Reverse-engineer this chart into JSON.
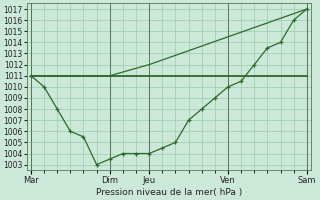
{
  "background_color": "#cce8d8",
  "grid_color": "#99ccaa",
  "line_color": "#2d6a2d",
  "marker_color": "#2d6a2d",
  "title": "Pression niveau de la mer( hPa )",
  "ylim_min": 1002.5,
  "ylim_max": 1017.5,
  "yticks": [
    1003,
    1004,
    1005,
    1006,
    1007,
    1008,
    1009,
    1010,
    1011,
    1012,
    1013,
    1014,
    1015,
    1016,
    1017
  ],
  "x_day_labels": [
    "Mar",
    "Dim",
    "Jeu",
    "Ven",
    "Sam"
  ],
  "x_day_positions": [
    0,
    6,
    9,
    15,
    21
  ],
  "xlim_min": -0.3,
  "xlim_max": 21.3,
  "series1_x": [
    0,
    1,
    6,
    9,
    15,
    21
  ],
  "series1_y": [
    1011,
    1011,
    1011,
    1011,
    1011,
    1011
  ],
  "series2_x": [
    0,
    1,
    2,
    3,
    4,
    5,
    6,
    7,
    8,
    9,
    10,
    11,
    12,
    13,
    14,
    15,
    16,
    17,
    18,
    19,
    20,
    21
  ],
  "series2_y": [
    1011,
    1010,
    1008,
    1006,
    1005.5,
    1003,
    1003.5,
    1004,
    1004,
    1004,
    1004.5,
    1005,
    1007,
    1008,
    1009,
    1010,
    1010.5,
    1012,
    1013.5,
    1014,
    1016,
    1017
  ],
  "series3_x": [
    0,
    6,
    9,
    21
  ],
  "series3_y": [
    1011,
    1011,
    1012,
    1017
  ],
  "ytick_fontsize": 5.5,
  "xtick_fontsize": 6.0,
  "xlabel_fontsize": 6.5
}
